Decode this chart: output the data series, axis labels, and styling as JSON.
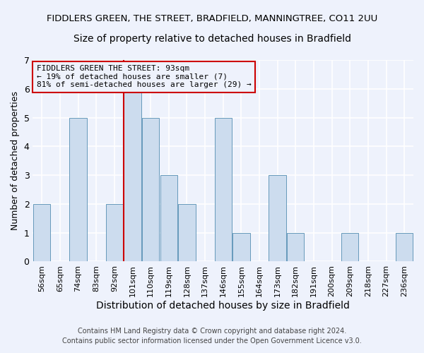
{
  "title": "FIDDLERS GREEN, THE STREET, BRADFIELD, MANNINGTREE, CO11 2UU",
  "subtitle": "Size of property relative to detached houses in Bradfield",
  "xlabel": "Distribution of detached houses by size in Bradfield",
  "ylabel": "Number of detached properties",
  "footer_line1": "Contains HM Land Registry data © Crown copyright and database right 2024.",
  "footer_line2": "Contains public sector information licensed under the Open Government Licence v3.0.",
  "categories": [
    "56sqm",
    "65sqm",
    "74sqm",
    "83sqm",
    "92sqm",
    "101sqm",
    "110sqm",
    "119sqm",
    "128sqm",
    "137sqm",
    "146sqm",
    "155sqm",
    "164sqm",
    "173sqm",
    "182sqm",
    "191sqm",
    "200sqm",
    "209sqm",
    "218sqm",
    "227sqm",
    "236sqm"
  ],
  "values": [
    2,
    0,
    5,
    0,
    2,
    6,
    5,
    3,
    2,
    0,
    5,
    1,
    0,
    3,
    1,
    0,
    0,
    1,
    0,
    0,
    1
  ],
  "bar_color": "#ccdcee",
  "bar_edge_color": "#6699bb",
  "background_color": "#eef2fc",
  "grid_color": "#ffffff",
  "annotation_line1": "FIDDLERS GREEN THE STREET: 93sqm",
  "annotation_line2": "← 19% of detached houses are smaller (7)",
  "annotation_line3": "81% of semi-detached houses are larger (29) →",
  "annotation_box_edge": "#cc0000",
  "vline_color": "#cc0000",
  "vline_x": 4.5,
  "ylim_max": 7,
  "title_fontsize": 9.5,
  "subtitle_fontsize": 10,
  "xlabel_fontsize": 10,
  "ylabel_fontsize": 9,
  "tick_fontsize": 8,
  "annotation_fontsize": 8,
  "footer_fontsize": 7
}
